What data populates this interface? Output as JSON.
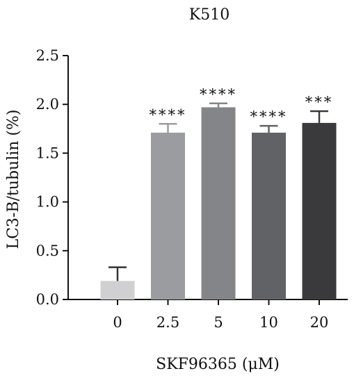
{
  "chart_data": {
    "type": "bar",
    "title": "K510",
    "xlabel": "SKF96365 (μM)",
    "ylabel": "LC3-B/tubulin (%)",
    "ylim": [
      0,
      2.5
    ],
    "yticks": [
      "0.0",
      "0.5",
      "1.0",
      "1.5",
      "2.0",
      "2.5"
    ],
    "categories": [
      "0",
      "2.5",
      "5",
      "10",
      "20"
    ],
    "values": [
      0.19,
      1.71,
      1.97,
      1.71,
      1.81
    ],
    "errors": [
      0.14,
      0.09,
      0.04,
      0.07,
      0.12
    ],
    "significance": [
      "",
      "****",
      "****",
      "****",
      "***"
    ],
    "colors": [
      "#d0d0d2",
      "#9a9c9f",
      "#848588",
      "#616265",
      "#3a3a3c"
    ],
    "grid": false,
    "legend": "none"
  }
}
